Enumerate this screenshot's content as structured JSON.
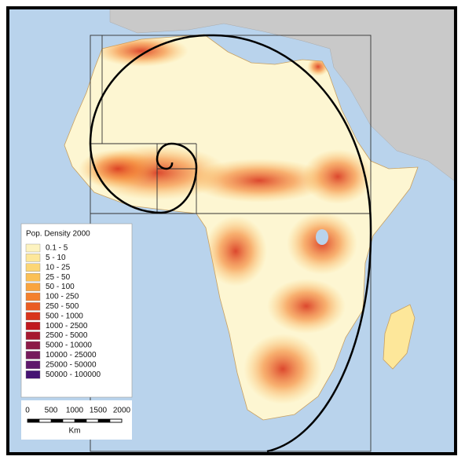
{
  "legend": {
    "title": "Pop. Density 2000",
    "items": [
      {
        "label": "0.1 - 5",
        "color": "#fdf3c0"
      },
      {
        "label": "5 - 10",
        "color": "#fde79a"
      },
      {
        "label": "10 - 25",
        "color": "#fcd675"
      },
      {
        "label": "25 - 50",
        "color": "#fbc055"
      },
      {
        "label": "50 - 100",
        "color": "#f9a43e"
      },
      {
        "label": "100 - 250",
        "color": "#f4802d"
      },
      {
        "label": "250 - 500",
        "color": "#ea5c23"
      },
      {
        "label": "500 - 1000",
        "color": "#d8341c"
      },
      {
        "label": "1000 - 2500",
        "color": "#c0181e"
      },
      {
        "label": "2500 - 5000",
        "color": "#a5182f"
      },
      {
        "label": "5000 - 10000",
        "color": "#8c1a47"
      },
      {
        "label": "10000 - 25000",
        "color": "#751a5c"
      },
      {
        "label": "25000 - 50000",
        "color": "#5d176b"
      },
      {
        "label": "50000 - 100000",
        "color": "#451373"
      }
    ]
  },
  "scale_bar": {
    "ticks": [
      0,
      500,
      1000,
      1500,
      2000
    ],
    "unit": "Km"
  }
}
